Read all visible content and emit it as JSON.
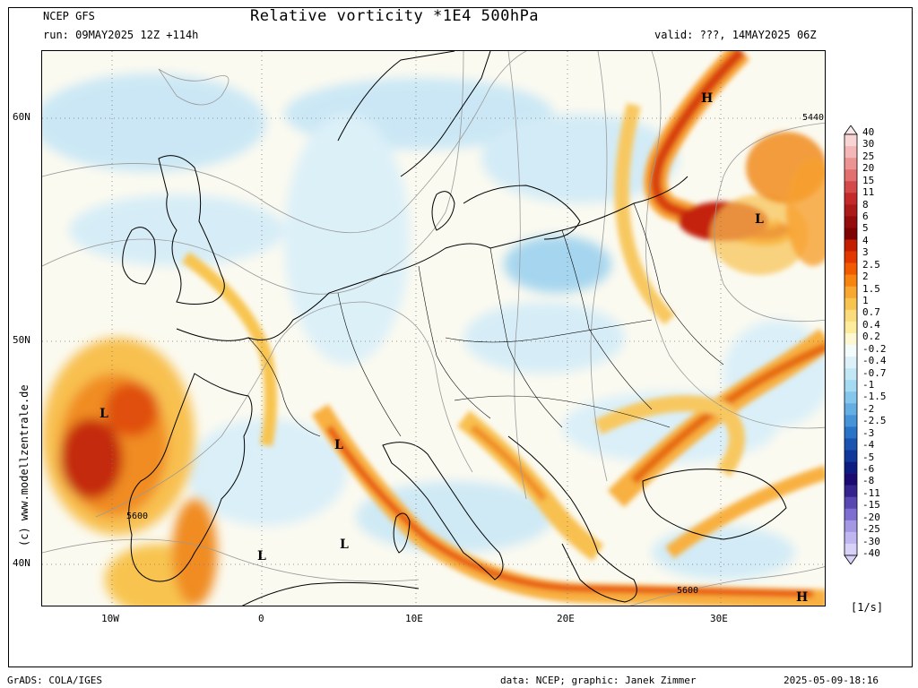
{
  "header": {
    "source": "NCEP GFS",
    "title": "Relative vorticity *1E4 500hPa",
    "run": "run: 09MAY2025 12Z +114h",
    "valid": "valid: ???, 14MAY2025 06Z"
  },
  "axes": {
    "lat_ticks": [
      "60N",
      "50N",
      "40N"
    ],
    "lon_ticks": [
      "10W",
      "0",
      "10E",
      "20E",
      "30E"
    ]
  },
  "map_labels": {
    "pressure_lows": [
      "L",
      "L",
      "L",
      "L",
      "L"
    ],
    "pressure_highs": [
      "H",
      "H"
    ],
    "contours": [
      "5440",
      "5600",
      "5600"
    ]
  },
  "legend": {
    "levels": [
      "40",
      "30",
      "25",
      "20",
      "15",
      "11",
      "8",
      "6",
      "5",
      "4",
      "3",
      "2.5",
      "2",
      "1.5",
      "1",
      "0.7",
      "0.4",
      "0.2",
      "-0.2",
      "-0.4",
      "-0.7",
      "-1",
      "-1.5",
      "-2",
      "-2.5",
      "-3",
      "-4",
      "-5",
      "-6",
      "-8",
      "-11",
      "-15",
      "-20",
      "-25",
      "-30",
      "-40"
    ],
    "colors": [
      "#f8d4d4",
      "#f4b6b6",
      "#ec9494",
      "#e27070",
      "#d44a4a",
      "#c42a2a",
      "#ac1a1a",
      "#940c0c",
      "#7e0404",
      "#c41e00",
      "#e23800",
      "#f25a00",
      "#f88410",
      "#f8a830",
      "#f8c450",
      "#fadc7c",
      "#fcec9c",
      "#fef8d2",
      "#f4fbfb",
      "#dcf2f8",
      "#c2e8f6",
      "#a4daf2",
      "#84c6ec",
      "#64aee4",
      "#4694d8",
      "#2a74c8",
      "#1a54b0",
      "#10389a",
      "#0c1c80",
      "#1a0a72",
      "#36248e",
      "#5a48b2",
      "#7e6ed2",
      "#a498e4",
      "#c0b6f0",
      "#d8d2f8"
    ],
    "unit": "[1/s]"
  },
  "watermark": "(c) www.modellzentrale.de",
  "footer": {
    "left": "GrADS: COLA/IGES",
    "center": "data: NCEP; graphic: Janek Zimmer",
    "right": "2025-05-09-18:16"
  }
}
